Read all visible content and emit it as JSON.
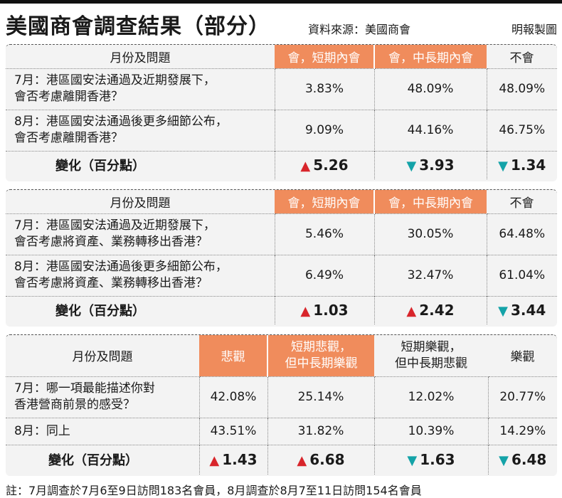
{
  "header": {
    "title": "美國商會調查結果（部分）",
    "source": "資料來源：美國商會",
    "credit": "明報製圖"
  },
  "table1": {
    "headers": [
      "月份及問題",
      "會，短期內會",
      "會，中長期內會",
      "不會"
    ],
    "rows": [
      {
        "q1": "7月：港區國安法通過及近期發展下，",
        "q2": "會否考慮離開香港？",
        "v": [
          "3.83%",
          "48.09%",
          "48.09%"
        ]
      },
      {
        "q1": "8月：港區國安法通過後更多細節公布，",
        "q2": "會否考慮離開香港？",
        "v": [
          "9.09%",
          "44.16%",
          "46.75%"
        ]
      }
    ],
    "change_label": "變化（百分點）",
    "changes": [
      {
        "dir": "up",
        "symbol": "▲",
        "value": "5.26"
      },
      {
        "dir": "down",
        "symbol": "▼",
        "value": "3.93"
      },
      {
        "dir": "down",
        "symbol": "▼",
        "value": "1.34"
      }
    ]
  },
  "table2": {
    "headers": [
      "月份及問題",
      "會，短期內會",
      "會，中長期內會",
      "不會"
    ],
    "rows": [
      {
        "q1": "7月：港區國安法通過及近期發展下，",
        "q2": "會否考慮將資產、業務轉移出香港？",
        "v": [
          "5.46%",
          "30.05%",
          "64.48%"
        ]
      },
      {
        "q1": "8月：港區國安法通過後更多細節公布，",
        "q2": "會否考慮將資產、業務轉移出香港？",
        "v": [
          "6.49%",
          "32.47%",
          "61.04%"
        ]
      }
    ],
    "change_label": "變化（百分點）",
    "changes": [
      {
        "dir": "up",
        "symbol": "▲",
        "value": "1.03"
      },
      {
        "dir": "up",
        "symbol": "▲",
        "value": "2.42"
      },
      {
        "dir": "down",
        "symbol": "▼",
        "value": "3.44"
      }
    ]
  },
  "table3": {
    "headers": [
      "月份及問題",
      "悲觀",
      "短期悲觀，",
      "但中長期樂觀",
      "短期樂觀，",
      "但中長期悲觀",
      "樂觀"
    ],
    "rows": [
      {
        "q1": "7月：哪一項最能描述你對",
        "q2": "香港營商前景的感受？",
        "v": [
          "42.08%",
          "25.14%",
          "12.02%",
          "20.77%"
        ]
      },
      {
        "q1": "8月：同上",
        "q2": "",
        "v": [
          "43.51%",
          "31.82%",
          "10.39%",
          "14.29%"
        ]
      }
    ],
    "change_label": "變化（百分點）",
    "changes": [
      {
        "dir": "up",
        "symbol": "▲",
        "value": "1.43"
      },
      {
        "dir": "up",
        "symbol": "▲",
        "value": "6.68"
      },
      {
        "dir": "down",
        "symbol": "▼",
        "value": "1.63"
      },
      {
        "dir": "down",
        "symbol": "▼",
        "value": "6.48"
      }
    ]
  },
  "note": "註：7月調查於7月6至9日訪問183名會員，8月調查於8月7至11日訪問154名會員",
  "colors": {
    "header_orange": "#f08c5c",
    "up": "#d8252b",
    "down": "#14a3a8"
  }
}
